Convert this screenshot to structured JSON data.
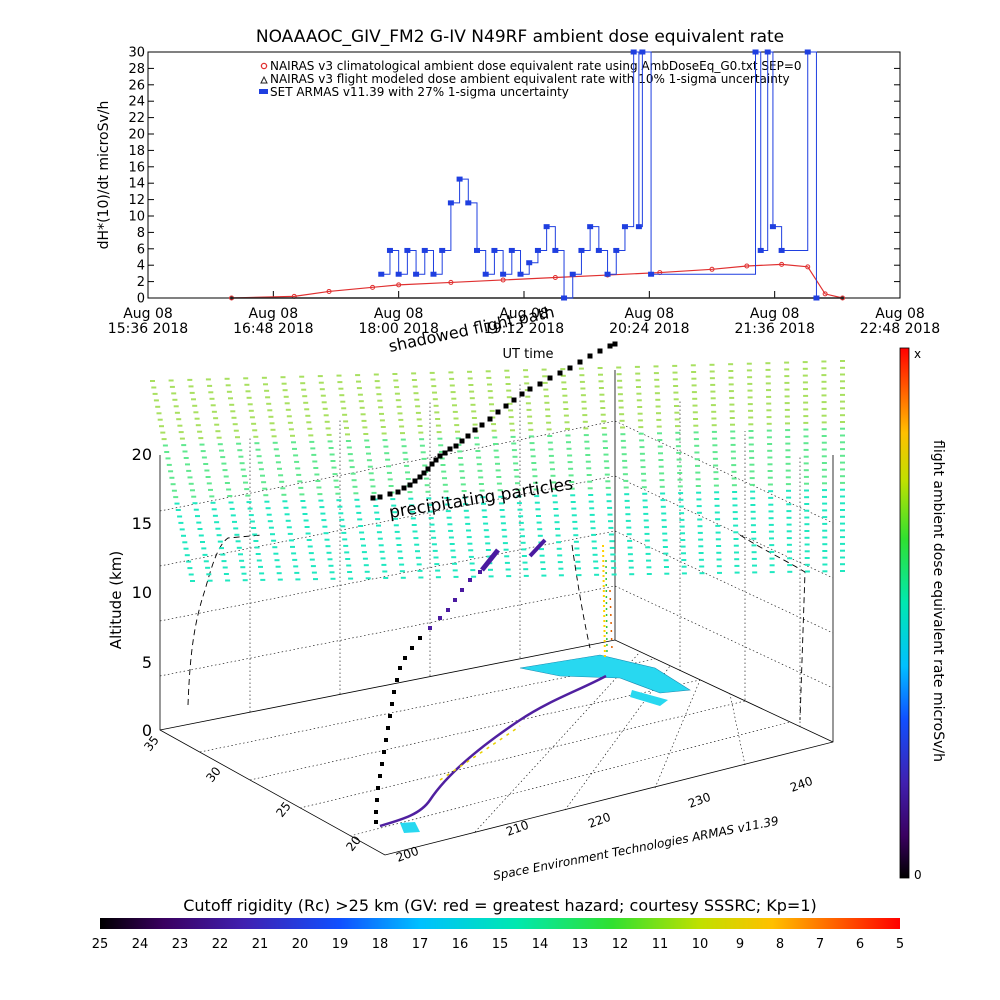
{
  "chart_data": [
    {
      "type": "line",
      "title": "NOAAAOC_GIV_FM2 G-IV    N49RF  ambient dose equivalent rate",
      "xlabel": "UT time",
      "ylabel": "dH*(10)/dt microSv/h",
      "ylim": [
        0,
        30
      ],
      "yticks": [
        "0",
        "2",
        "4",
        "6",
        "8",
        "10",
        "12",
        "14",
        "16",
        "18",
        "20",
        "22",
        "24",
        "26",
        "28",
        "30"
      ],
      "xlim": [
        "2018-08-08 15:36",
        "2018-08-08 22:48"
      ],
      "xticks": [
        {
          "top": "Aug 08",
          "bottom": "15:36  2018"
        },
        {
          "top": "Aug 08",
          "bottom": "16:48  2018"
        },
        {
          "top": "Aug 08",
          "bottom": "18:00  2018"
        },
        {
          "top": "Aug 08",
          "bottom": "19:12  2018"
        },
        {
          "top": "Aug 08",
          "bottom": "20:24  2018"
        },
        {
          "top": "Aug 08",
          "bottom": "21:36  2018"
        },
        {
          "top": "Aug 08",
          "bottom": "22:48  2018"
        }
      ],
      "legend_position": "top",
      "series": [
        {
          "name": "NAIRAS v3 climatological ambient dose equivalent rate using AmbDoseEq_G0.txt SEP=0",
          "color": "#e03030",
          "x": [
            "16:24",
            "17:00",
            "17:20",
            "17:45",
            "18:00",
            "18:30",
            "19:00",
            "19:30",
            "20:00",
            "20:30",
            "21:00",
            "21:20",
            "21:40",
            "21:55",
            "22:05",
            "22:15"
          ],
          "values": [
            0,
            0.2,
            0.8,
            1.3,
            1.6,
            1.9,
            2.2,
            2.5,
            2.8,
            3.1,
            3.5,
            3.9,
            4.1,
            3.8,
            0.5,
            0
          ]
        },
        {
          "name": "NAIRAS v3 flight modeled dose ambient equivalent rate with 10% 1-sigma uncertainty",
          "color": "#222222",
          "x": [
            "16:24",
            "22:15"
          ],
          "values": [
            0,
            0
          ]
        },
        {
          "name": "SET ARMAS v11.39 with 27% 1-sigma uncertainty",
          "color": "#1f3fe0",
          "x": [
            "17:50",
            "17:55",
            "18:00",
            "18:05",
            "18:10",
            "18:15",
            "18:20",
            "18:25",
            "18:30",
            "18:35",
            "18:40",
            "18:45",
            "18:50",
            "18:55",
            "19:00",
            "19:05",
            "19:10",
            "19:15",
            "19:20",
            "19:25",
            "19:30",
            "19:35",
            "19:40",
            "19:45",
            "19:50",
            "19:55",
            "20:00",
            "20:05",
            "20:10",
            "20:15",
            "20:18",
            "20:20",
            "20:25",
            "21:25",
            "21:28",
            "21:32",
            "21:35",
            "21:40",
            "21:55",
            "22:00"
          ],
          "values": [
            2.9,
            5.8,
            2.9,
            5.8,
            2.9,
            5.8,
            2.9,
            5.8,
            11.6,
            14.5,
            11.6,
            5.8,
            2.9,
            5.8,
            2.9,
            5.8,
            2.9,
            4.3,
            5.8,
            8.7,
            5.8,
            0,
            2.9,
            5.8,
            8.7,
            5.8,
            2.9,
            5.8,
            8.7,
            30,
            8.7,
            30,
            2.9,
            30,
            5.8,
            30,
            8.7,
            5.8,
            30,
            0
          ]
        }
      ]
    },
    {
      "type": "scatter",
      "subtype": "3d-trajectory",
      "zlabel": "Altitude (km)",
      "zticks": [
        "0",
        "5",
        "10",
        "15",
        "20"
      ],
      "xticks": [
        "200",
        "210",
        "220",
        "230",
        "240"
      ],
      "yticks": [
        "20",
        "25",
        "30",
        "35"
      ],
      "credit": "Space Environment Technologies ARMAS v11.39",
      "annotations": [
        "precipitating particles",
        "shadowed flight path"
      ],
      "colorbar": {
        "label": "flight ambient dose equivalent rate microSv/h",
        "min_label": "0",
        "max_label": "x"
      }
    },
    {
      "type": "heatmap",
      "subtype": "colorbar",
      "label": "Cutoff rigidity (Rc) >25 km (GV: red = greatest hazard; courtesy SSSRC; Kp=1)",
      "ticks": [
        "25",
        "24",
        "23",
        "22",
        "21",
        "20",
        "19",
        "18",
        "17",
        "16",
        "15",
        "14",
        "13",
        "12",
        "11",
        "10",
        "9",
        "8",
        "7",
        "6",
        "5"
      ]
    }
  ]
}
